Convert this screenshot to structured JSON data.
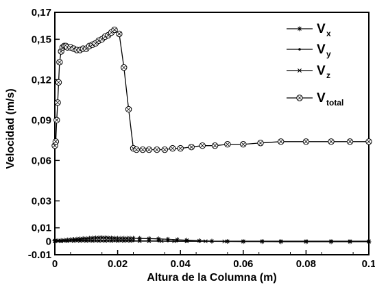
{
  "chart_data": {
    "type": "line",
    "xlabel": "Altura de la Columna (m)",
    "ylabel": "Velocidad (m/s)",
    "xlim": [
      0,
      0.1
    ],
    "ylim": [
      -0.01,
      0.17
    ],
    "x_ticks": [
      0,
      0.02,
      0.04,
      0.06,
      0.08,
      0.1
    ],
    "x_tick_labels": [
      "0",
      "0.02",
      "0.04",
      "0.06",
      "0.08",
      "0.1"
    ],
    "y_ticks": [
      -0.01,
      0,
      0.01,
      0.03,
      0.06,
      0.09,
      0.12,
      0.15,
      0.17
    ],
    "y_tick_labels": [
      "-0.01",
      "0",
      "0,01",
      "0,03",
      "0,06",
      "0,09",
      "0,12",
      "0,15",
      "0,17"
    ],
    "grid": false,
    "legend_position": "top-right",
    "legend": [
      {
        "main": "V",
        "sub": "x",
        "marker": "asterisk"
      },
      {
        "main": "V",
        "sub": "y",
        "marker": "dot"
      },
      {
        "main": "V",
        "sub": "z",
        "marker": "x"
      },
      {
        "main": "V",
        "sub": "total",
        "marker": "circle"
      }
    ],
    "series": [
      {
        "marker": "circle",
        "x": [
          0.0,
          0.0003,
          0.0006,
          0.0009,
          0.0012,
          0.0015,
          0.002,
          0.0025,
          0.003,
          0.0035,
          0.004,
          0.005,
          0.006,
          0.007,
          0.008,
          0.009,
          0.01,
          0.011,
          0.012,
          0.013,
          0.014,
          0.015,
          0.016,
          0.017,
          0.018,
          0.019,
          0.0205,
          0.022,
          0.0235,
          0.025,
          0.026,
          0.028,
          0.03,
          0.0325,
          0.035,
          0.0375,
          0.04,
          0.0435,
          0.047,
          0.051,
          0.055,
          0.06,
          0.0655,
          0.072,
          0.08,
          0.088,
          0.094,
          0.1
        ],
        "y": [
          0.071,
          0.074,
          0.09,
          0.103,
          0.118,
          0.133,
          0.141,
          0.144,
          0.145,
          0.145,
          0.144,
          0.144,
          0.143,
          0.142,
          0.142,
          0.143,
          0.143,
          0.145,
          0.146,
          0.147,
          0.149,
          0.15,
          0.152,
          0.153,
          0.155,
          0.157,
          0.154,
          0.129,
          0.098,
          0.069,
          0.068,
          0.068,
          0.068,
          0.068,
          0.068,
          0.069,
          0.069,
          0.07,
          0.071,
          0.071,
          0.072,
          0.072,
          0.073,
          0.074,
          0.074,
          0.074,
          0.074,
          0.074
        ]
      },
      {
        "marker": "asterisk",
        "x": [
          0.0,
          0.001,
          0.002,
          0.003,
          0.004,
          0.005,
          0.006,
          0.007,
          0.008,
          0.009,
          0.01,
          0.011,
          0.012,
          0.013,
          0.014,
          0.015,
          0.016,
          0.017,
          0.018,
          0.019,
          0.02,
          0.021,
          0.022,
          0.023,
          0.024,
          0.025,
          0.027,
          0.03,
          0.033,
          0.036,
          0.039,
          0.042,
          0.046,
          0.05,
          0.055,
          0.06,
          0.066,
          0.072,
          0.08,
          0.088,
          0.094,
          0.1
        ],
        "y": [
          0.0005,
          0.0005,
          0.0006,
          0.0008,
          0.001,
          0.0012,
          0.0014,
          0.0016,
          0.0018,
          0.002,
          0.002,
          0.0022,
          0.0024,
          0.0025,
          0.0026,
          0.0027,
          0.0026,
          0.0025,
          0.0024,
          0.0023,
          0.0022,
          0.0022,
          0.0022,
          0.0022,
          0.0022,
          0.0022,
          0.0021,
          0.002,
          0.0018,
          0.0015,
          0.0012,
          0.0008,
          0.0004,
          0.0001,
          -0.0001,
          -0.0002,
          -0.0002,
          -0.0003,
          -0.0003,
          -0.0003,
          -0.0003,
          -0.0003
        ]
      },
      {
        "marker": "dot",
        "x": [
          0.0,
          0.001,
          0.002,
          0.003,
          0.004,
          0.005,
          0.006,
          0.007,
          0.008,
          0.009,
          0.01,
          0.011,
          0.012,
          0.013,
          0.014,
          0.015,
          0.016,
          0.017,
          0.018,
          0.019,
          0.02,
          0.021,
          0.022,
          0.023,
          0.024,
          0.025,
          0.027,
          0.03,
          0.033,
          0.036,
          0.039,
          0.042,
          0.046,
          0.05,
          0.055,
          0.06,
          0.066,
          0.072,
          0.08,
          0.088,
          0.094,
          0.1
        ],
        "y": [
          0.0003,
          0.0003,
          0.0003,
          0.0003,
          0.0003,
          0.0003,
          0.0003,
          0.0003,
          0.0003,
          0.0003,
          0.0003,
          0.0003,
          0.0003,
          0.0003,
          0.0003,
          0.0003,
          0.0003,
          0.0003,
          0.0003,
          0.0003,
          0.0003,
          0.0003,
          0.0003,
          0.0003,
          0.0003,
          0.0003,
          0.0003,
          0.0003,
          0.0002,
          0.0002,
          0.0002,
          0.0002,
          0.0002,
          0.0001,
          0.0001,
          0.0001,
          0.0001,
          0.0001,
          0.0001,
          0.0001,
          0.0001,
          0.0001
        ]
      },
      {
        "marker": "x",
        "x": [
          0.0,
          0.002,
          0.004,
          0.006,
          0.008,
          0.01,
          0.012,
          0.014,
          0.016,
          0.018,
          0.02,
          0.022,
          0.024,
          0.027,
          0.03,
          0.034,
          0.038,
          0.042,
          0.048,
          0.054,
          0.06,
          0.066,
          0.072,
          0.08,
          0.088,
          0.094,
          0.1
        ],
        "y": [
          0.0,
          0.0,
          0.0001,
          0.0001,
          0.0002,
          0.0002,
          0.0002,
          0.0002,
          0.0002,
          0.0002,
          0.0002,
          0.0002,
          0.0002,
          0.0001,
          0.0001,
          0.0001,
          0.0,
          0.0,
          0.0,
          -0.0001,
          -0.0001,
          -0.0001,
          -0.0001,
          -0.0001,
          -0.0001,
          -0.0001,
          -0.0001
        ]
      }
    ]
  }
}
